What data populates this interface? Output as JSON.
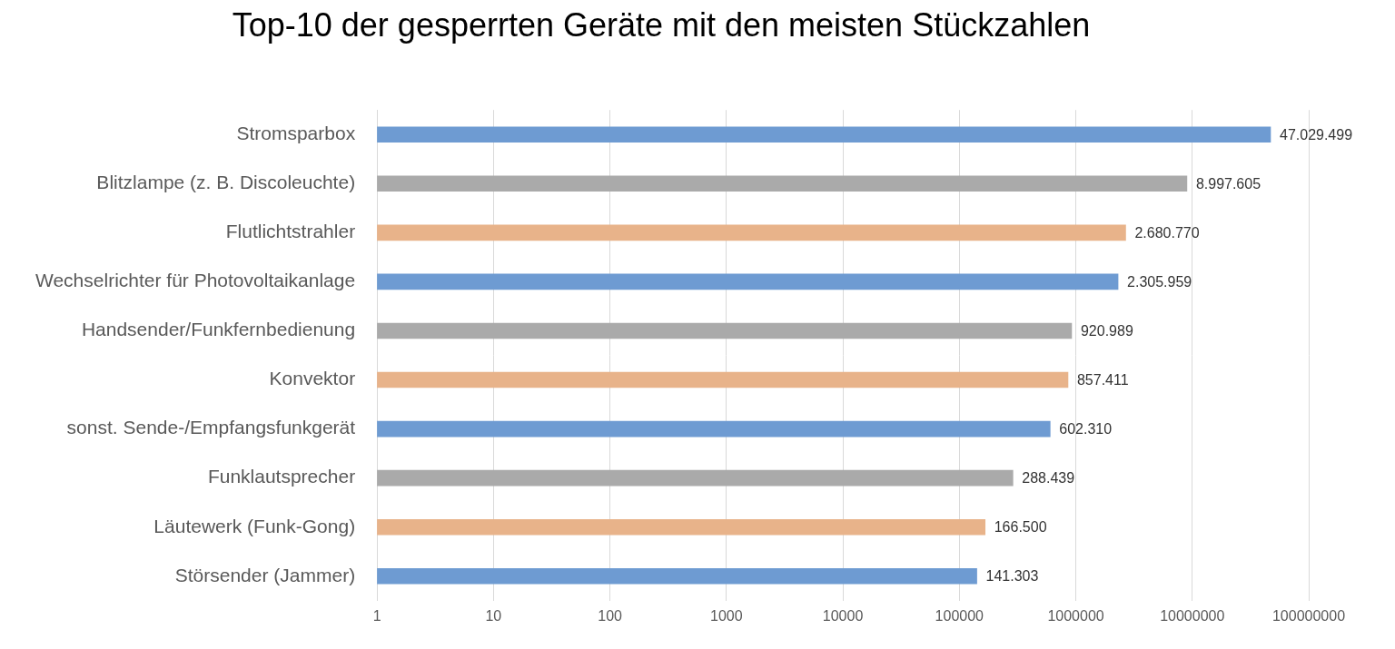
{
  "chart_data": {
    "type": "bar",
    "orientation": "horizontal",
    "title": "Top-10 der gesperrten Geräte mit den meisten Stückzahlen",
    "categories": [
      "Stromsparbox",
      "Blitzlampe (z. B. Discoleuchte)",
      "Flutlichtstrahler",
      "Wechselrichter für Photovoltaikanlage",
      "Handsender/Funkfernbedienung",
      "Konvektor",
      "sonst. Sende-/Empfangsfunkgerät",
      "Funklautsprecher",
      "Läutewerk (Funk-Gong)",
      "Störsender (Jammer)"
    ],
    "values": [
      47029499,
      8997605,
      2680770,
      2305959,
      920989,
      857411,
      602310,
      288439,
      166500,
      141303
    ],
    "value_labels": [
      "47.029.499",
      "8.997.605",
      "2.680.770",
      "2.305.959",
      "920.989",
      "857.411",
      "602.310",
      "288.439",
      "166.500",
      "141.303"
    ],
    "colors": [
      "#6e9bd2",
      "#aaaaaa",
      "#e8b38a",
      "#6e9bd2",
      "#aaaaaa",
      "#e8b38a",
      "#6e9bd2",
      "#aaaaaa",
      "#e8b38a",
      "#6e9bd2"
    ],
    "log": "x",
    "xlim": [
      1,
      100000000
    ],
    "xticks": [
      1,
      10,
      100,
      1000,
      10000,
      100000,
      1000000,
      10000000,
      100000000
    ],
    "grid": true,
    "data_labels": true
  }
}
